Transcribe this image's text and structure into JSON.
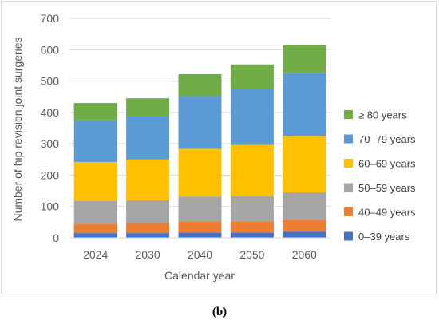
{
  "caption": "(b)",
  "chart_data": {
    "type": "bar",
    "stacked": true,
    "categories": [
      "2024",
      "2030",
      "2040",
      "2050",
      "2060"
    ],
    "xlabel": "Calendar year",
    "ylabel": "Number of hip revision joint surgeries",
    "ylim": [
      0,
      700
    ],
    "yticks": [
      0,
      100,
      200,
      300,
      400,
      500,
      600,
      700
    ],
    "grid": true,
    "legend_position": "right",
    "series": [
      {
        "name": "0–39 years",
        "color": "#4472C4",
        "values": [
          15,
          15,
          17,
          17,
          20
        ]
      },
      {
        "name": "40–49 years",
        "color": "#ED7D31",
        "values": [
          30,
          32,
          35,
          35,
          37
        ]
      },
      {
        "name": "50–59 years",
        "color": "#A5A5A5",
        "values": [
          72,
          73,
          80,
          82,
          88
        ]
      },
      {
        "name": "60–69 years",
        "color": "#FFC000",
        "values": [
          125,
          130,
          152,
          162,
          180
        ]
      },
      {
        "name": "70–79 years",
        "color": "#5B9BD5",
        "values": [
          133,
          138,
          168,
          180,
          200
        ]
      },
      {
        "name": "≥ 80 years",
        "color": "#70AD47",
        "values": [
          55,
          57,
          70,
          77,
          90
        ]
      }
    ]
  }
}
